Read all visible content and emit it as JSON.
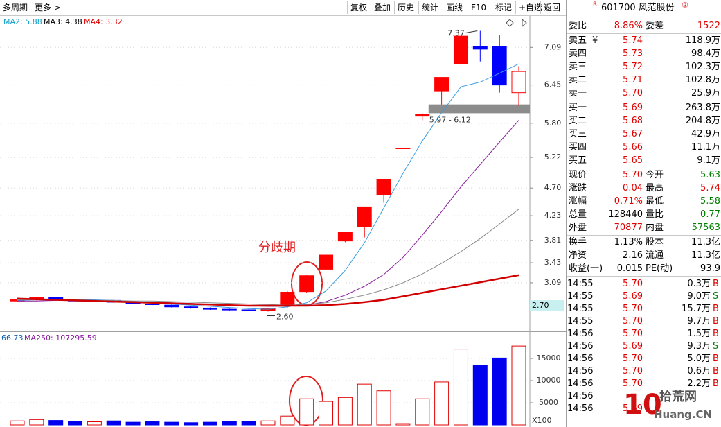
{
  "toolbar": {
    "left": [
      "多周期",
      "更多 >"
    ],
    "buttons": [
      "复权",
      "叠加",
      "历史",
      "统计",
      "画线",
      "F10",
      "标记",
      "+自选",
      "返回"
    ]
  },
  "chart_data": [
    {
      "type": "candlestick",
      "legend": [
        {
          "text": "MA2: 5.88",
          "color": "#0a9fc8"
        },
        {
          "text": "MA3: 4.38",
          "color": "#000000"
        },
        {
          "text": "MA4: 3.32",
          "color": "#e00000"
        }
      ],
      "open": [
        2.78,
        2.8,
        2.84,
        2.8,
        2.78,
        2.79,
        2.76,
        2.73,
        2.71,
        2.68,
        2.66,
        2.64,
        2.63,
        2.62,
        2.7,
        2.94,
        3.32,
        3.8,
        4.04,
        4.59,
        5.38,
        5.92,
        6.35,
        6.81,
        7.11,
        7.1,
        6.32
      ],
      "high": [
        2.82,
        2.85,
        2.85,
        2.81,
        2.8,
        2.8,
        2.77,
        2.74,
        2.72,
        2.69,
        2.67,
        2.65,
        2.64,
        2.66,
        2.95,
        3.22,
        3.56,
        3.95,
        4.38,
        4.85,
        5.38,
        5.97,
        6.58,
        7.28,
        7.37,
        7.3,
        6.77
      ],
      "low": [
        2.76,
        2.79,
        2.8,
        2.77,
        2.77,
        2.75,
        2.73,
        2.71,
        2.67,
        2.65,
        2.63,
        2.62,
        2.61,
        2.6,
        2.66,
        2.92,
        3.3,
        3.78,
        3.86,
        4.45,
        5.38,
        5.85,
        6.12,
        6.74,
        6.85,
        6.32,
        6.1
      ],
      "close": [
        2.8,
        2.84,
        2.81,
        2.78,
        2.79,
        2.76,
        2.74,
        2.72,
        2.68,
        2.66,
        2.64,
        2.63,
        2.62,
        2.65,
        2.93,
        3.21,
        3.56,
        3.95,
        4.38,
        4.85,
        5.38,
        5.95,
        6.58,
        7.28,
        7.06,
        6.45,
        6.68
      ],
      "series": [
        {
          "color": "#3a9de0",
          "values": [
            2.79,
            2.8,
            2.81,
            2.81,
            2.8,
            2.79,
            2.77,
            2.75,
            2.73,
            2.71,
            2.69,
            2.67,
            2.65,
            2.64,
            2.68,
            2.75,
            2.95,
            3.3,
            3.77,
            4.36,
            4.95,
            5.5,
            5.98,
            6.42,
            6.5,
            6.65,
            6.81
          ]
        },
        {
          "color": "#8a1aa0",
          "values": [
            2.78,
            2.78,
            2.79,
            2.79,
            2.79,
            2.78,
            2.77,
            2.76,
            2.75,
            2.74,
            2.72,
            2.71,
            2.7,
            2.69,
            2.69,
            2.71,
            2.77,
            2.88,
            3.03,
            3.23,
            3.52,
            3.9,
            4.3,
            4.72,
            5.1,
            5.48,
            5.85
          ]
        },
        {
          "color": "#8a8a8a",
          "values": [
            2.8,
            2.8,
            2.8,
            2.8,
            2.79,
            2.79,
            2.78,
            2.78,
            2.77,
            2.76,
            2.75,
            2.74,
            2.73,
            2.72,
            2.71,
            2.72,
            2.75,
            2.81,
            2.88,
            2.97,
            3.09,
            3.24,
            3.42,
            3.62,
            3.84,
            4.09,
            4.34
          ]
        },
        {
          "color": "#d00000",
          "values": [
            2.82,
            2.81,
            2.8,
            2.79,
            2.78,
            2.77,
            2.76,
            2.75,
            2.74,
            2.73,
            2.72,
            2.71,
            2.7,
            2.7,
            2.7,
            2.7,
            2.71,
            2.73,
            2.76,
            2.8,
            2.86,
            2.92,
            2.98,
            3.04,
            3.1,
            3.16,
            3.22
          ]
        }
      ],
      "ylim": [
        2.3,
        7.6
      ],
      "yticks": [
        7.09,
        6.45,
        {
          "value": 5.8,
          "label": "5.80"
        },
        5.22,
        {
          "value": 4.7,
          "label": "4.70"
        },
        4.23,
        3.81,
        3.43,
        3.09
      ],
      "cursor": {
        "value": 2.7,
        "label": "2.70"
      },
      "max_label": 7.37,
      "min_label": {
        "value": 2.6,
        "label": "2.60"
      },
      "range": {
        "low": 5.97,
        "high": 6.12,
        "label": "5.97 - 6.12"
      },
      "annotation": "分歧期",
      "grid": true,
      "up_color": "#ff0000",
      "down_color": "#0000ff"
    },
    {
      "type": "bar",
      "legend": [
        {
          "text": "66.73",
          "color": "#1060b0"
        },
        {
          "text": "MA250: 107295.59",
          "color": "#8a1aa0"
        }
      ],
      "values": [
        900,
        1200,
        1000,
        800,
        700,
        900,
        600,
        700,
        600,
        500,
        600,
        700,
        800,
        900,
        2000,
        5900,
        5300,
        6200,
        9200,
        7700,
        300,
        5900,
        9700,
        17100,
        13400,
        15100,
        17800
      ],
      "ylim": [
        0,
        21100
      ],
      "yticks": [
        5000,
        10000,
        15000
      ],
      "unit": "X100",
      "up_color": "#e00000",
      "down_color": "#0000ee"
    }
  ],
  "quote": {
    "badge": "R",
    "title": "601700 风范股份",
    "mark": "②",
    "ratio": [
      "委比",
      "8.86%",
      "委差",
      "1522"
    ],
    "sell": [
      [
        "卖五",
        "5.74",
        "118.9万"
      ],
      [
        "卖四",
        "5.73",
        "98.4万"
      ],
      [
        "卖三",
        "5.72",
        "102.3万"
      ],
      [
        "卖二",
        "5.71",
        "102.8万"
      ],
      [
        "卖一",
        "5.70",
        "25.9万"
      ]
    ],
    "sell_icon": "¥",
    "buy": [
      [
        "买一",
        "5.69",
        "263.8万"
      ],
      [
        "买二",
        "5.68",
        "204.8万"
      ],
      [
        "买三",
        "5.67",
        "42.9万"
      ],
      [
        "买四",
        "5.66",
        "11.1万"
      ],
      [
        "买五",
        "5.65",
        "9.1万"
      ]
    ],
    "stats": [
      [
        "现价",
        "5.70",
        "今开",
        "5.63"
      ],
      [
        "涨跌",
        "0.04",
        "最高",
        "5.74"
      ],
      [
        "涨幅",
        "0.71%",
        "最低",
        "5.58"
      ],
      [
        "总量",
        "128440",
        "量比",
        "0.77"
      ],
      [
        "外盘",
        "70877",
        "内盘",
        "57563"
      ]
    ],
    "stats2": [
      [
        "换手",
        "1.13%",
        "股本",
        "11.3亿"
      ],
      [
        "净资",
        "2.16",
        "流通",
        "11.3亿"
      ],
      [
        "收益(一)",
        "0.015",
        "PE(动)",
        "93.9"
      ]
    ],
    "trades": [
      [
        "14:55",
        "5.70",
        "0.3万",
        "B"
      ],
      [
        "14:55",
        "5.69",
        "9.0万",
        "S"
      ],
      [
        "14:55",
        "5.70",
        "15.7万",
        "B"
      ],
      [
        "14:55",
        "5.70",
        "9.7万",
        "B"
      ],
      [
        "14:56",
        "5.70",
        "1.5万",
        "B"
      ],
      [
        "14:56",
        "5.69",
        "9.3万",
        "S"
      ],
      [
        "14:56",
        "5.70",
        "5.0万",
        "B"
      ],
      [
        "14:56",
        "5.70",
        "0.6万",
        "B"
      ],
      [
        "14:56",
        "5.70",
        "2.2万",
        "B"
      ],
      [
        "14:56"
      ],
      [
        "14:56",
        "5.69"
      ]
    ]
  },
  "watermark": {
    "logo": "10",
    "name": "拾荒网",
    "site": "Huang.CN"
  }
}
